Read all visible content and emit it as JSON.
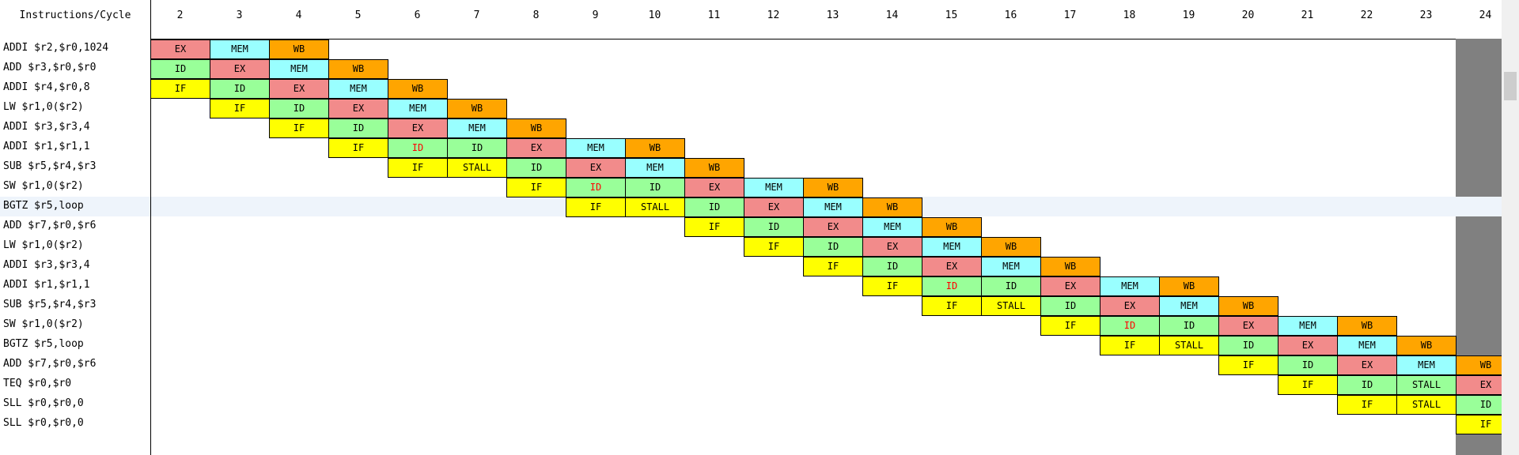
{
  "header": {
    "title": "Instructions/Cycle",
    "cycles": [
      "2",
      "3",
      "4",
      "5",
      "6",
      "7",
      "8",
      "9",
      "10",
      "11",
      "12",
      "13",
      "14",
      "15",
      "16",
      "17",
      "18",
      "19",
      "20",
      "21",
      "22",
      "23",
      "24"
    ]
  },
  "selected_row_index": 8,
  "rows": [
    {
      "instr": "ADDI $r2,$r0,1024",
      "stages": [
        {
          "c": 2,
          "s": "EX"
        },
        {
          "c": 3,
          "s": "MEM"
        },
        {
          "c": 4,
          "s": "WB"
        }
      ]
    },
    {
      "instr": "ADD $r3,$r0,$r0",
      "stages": [
        {
          "c": 2,
          "s": "ID"
        },
        {
          "c": 3,
          "s": "EX"
        },
        {
          "c": 4,
          "s": "MEM"
        },
        {
          "c": 5,
          "s": "WB"
        }
      ]
    },
    {
      "instr": "ADDI $r4,$r0,8",
      "stages": [
        {
          "c": 2,
          "s": "IF"
        },
        {
          "c": 3,
          "s": "ID"
        },
        {
          "c": 4,
          "s": "EX"
        },
        {
          "c": 5,
          "s": "MEM"
        },
        {
          "c": 6,
          "s": "WB"
        }
      ]
    },
    {
      "instr": "LW $r1,0($r2)",
      "stages": [
        {
          "c": 3,
          "s": "IF"
        },
        {
          "c": 4,
          "s": "ID"
        },
        {
          "c": 5,
          "s": "EX"
        },
        {
          "c": 6,
          "s": "MEM"
        },
        {
          "c": 7,
          "s": "WB"
        }
      ]
    },
    {
      "instr": "ADDI $r3,$r3,4",
      "stages": [
        {
          "c": 4,
          "s": "IF"
        },
        {
          "c": 5,
          "s": "ID"
        },
        {
          "c": 6,
          "s": "EX"
        },
        {
          "c": 7,
          "s": "MEM"
        },
        {
          "c": 8,
          "s": "WB"
        }
      ]
    },
    {
      "instr": "ADDI $r1,$r1,1",
      "stages": [
        {
          "c": 5,
          "s": "IF"
        },
        {
          "c": 6,
          "s": "ID",
          "red": true
        },
        {
          "c": 7,
          "s": "ID"
        },
        {
          "c": 8,
          "s": "EX"
        },
        {
          "c": 9,
          "s": "MEM"
        },
        {
          "c": 10,
          "s": "WB"
        }
      ]
    },
    {
      "instr": "SUB $r5,$r4,$r3",
      "stages": [
        {
          "c": 6,
          "s": "IF"
        },
        {
          "c": 7,
          "s": "STALL"
        },
        {
          "c": 8,
          "s": "ID"
        },
        {
          "c": 9,
          "s": "EX"
        },
        {
          "c": 10,
          "s": "MEM"
        },
        {
          "c": 11,
          "s": "WB"
        }
      ]
    },
    {
      "instr": "SW $r1,0($r2)",
      "stages": [
        {
          "c": 8,
          "s": "IF"
        },
        {
          "c": 9,
          "s": "ID",
          "red": true
        },
        {
          "c": 10,
          "s": "ID"
        },
        {
          "c": 11,
          "s": "EX"
        },
        {
          "c": 12,
          "s": "MEM"
        },
        {
          "c": 13,
          "s": "WB"
        }
      ]
    },
    {
      "instr": "BGTZ $r5,loop",
      "stages": [
        {
          "c": 9,
          "s": "IF"
        },
        {
          "c": 10,
          "s": "STALL"
        },
        {
          "c": 11,
          "s": "ID"
        },
        {
          "c": 12,
          "s": "EX"
        },
        {
          "c": 13,
          "s": "MEM"
        },
        {
          "c": 14,
          "s": "WB"
        }
      ]
    },
    {
      "instr": "ADD $r7,$r0,$r6",
      "stages": [
        {
          "c": 11,
          "s": "IF"
        },
        {
          "c": 12,
          "s": "ID"
        },
        {
          "c": 13,
          "s": "EX"
        },
        {
          "c": 14,
          "s": "MEM"
        },
        {
          "c": 15,
          "s": "WB"
        }
      ]
    },
    {
      "instr": "LW $r1,0($r2)",
      "stages": [
        {
          "c": 12,
          "s": "IF"
        },
        {
          "c": 13,
          "s": "ID"
        },
        {
          "c": 14,
          "s": "EX"
        },
        {
          "c": 15,
          "s": "MEM"
        },
        {
          "c": 16,
          "s": "WB"
        }
      ]
    },
    {
      "instr": "ADDI $r3,$r3,4",
      "stages": [
        {
          "c": 13,
          "s": "IF"
        },
        {
          "c": 14,
          "s": "ID"
        },
        {
          "c": 15,
          "s": "EX"
        },
        {
          "c": 16,
          "s": "MEM"
        },
        {
          "c": 17,
          "s": "WB"
        }
      ]
    },
    {
      "instr": "ADDI $r1,$r1,1",
      "stages": [
        {
          "c": 14,
          "s": "IF"
        },
        {
          "c": 15,
          "s": "ID",
          "red": true
        },
        {
          "c": 16,
          "s": "ID"
        },
        {
          "c": 17,
          "s": "EX"
        },
        {
          "c": 18,
          "s": "MEM"
        },
        {
          "c": 19,
          "s": "WB"
        }
      ]
    },
    {
      "instr": "SUB $r5,$r4,$r3",
      "stages": [
        {
          "c": 15,
          "s": "IF"
        },
        {
          "c": 16,
          "s": "STALL"
        },
        {
          "c": 17,
          "s": "ID"
        },
        {
          "c": 18,
          "s": "EX"
        },
        {
          "c": 19,
          "s": "MEM"
        },
        {
          "c": 20,
          "s": "WB"
        }
      ]
    },
    {
      "instr": "SW $r1,0($r2)",
      "stages": [
        {
          "c": 17,
          "s": "IF"
        },
        {
          "c": 18,
          "s": "ID",
          "red": true
        },
        {
          "c": 19,
          "s": "ID"
        },
        {
          "c": 20,
          "s": "EX"
        },
        {
          "c": 21,
          "s": "MEM"
        },
        {
          "c": 22,
          "s": "WB"
        }
      ]
    },
    {
      "instr": "BGTZ $r5,loop",
      "stages": [
        {
          "c": 18,
          "s": "IF"
        },
        {
          "c": 19,
          "s": "STALL"
        },
        {
          "c": 20,
          "s": "ID"
        },
        {
          "c": 21,
          "s": "EX"
        },
        {
          "c": 22,
          "s": "MEM"
        },
        {
          "c": 23,
          "s": "WB"
        }
      ]
    },
    {
      "instr": "ADD $r7,$r0,$r6",
      "stages": [
        {
          "c": 20,
          "s": "IF"
        },
        {
          "c": 21,
          "s": "ID"
        },
        {
          "c": 22,
          "s": "EX"
        },
        {
          "c": 23,
          "s": "MEM"
        },
        {
          "c": 24,
          "s": "WB"
        }
      ]
    },
    {
      "instr": "TEQ $r0,$r0",
      "stages": [
        {
          "c": 21,
          "s": "IF"
        },
        {
          "c": 22,
          "s": "ID"
        },
        {
          "c": 23,
          "s": "STALL"
        },
        {
          "c": 24,
          "s": "EX"
        }
      ]
    },
    {
      "instr": "SLL $r0,$r0,0",
      "stages": [
        {
          "c": 22,
          "s": "IF"
        },
        {
          "c": 23,
          "s": "STALL"
        },
        {
          "c": 24,
          "s": "ID"
        }
      ]
    },
    {
      "instr": "SLL $r0,$r0,0",
      "stages": [
        {
          "c": 24,
          "s": "IF"
        }
      ]
    }
  ],
  "colors": {
    "IF": "#ffff00",
    "ID": "#99ff99",
    "EX": "#f28b8b",
    "MEM": "#99ffff",
    "WB": "#ffa500",
    "STALL": "#ffff00",
    "STALL_ID": "#99ff99",
    "highlight_text": "#ff0000",
    "selected_row": "#eef4fb",
    "gray_band": "#808080"
  }
}
